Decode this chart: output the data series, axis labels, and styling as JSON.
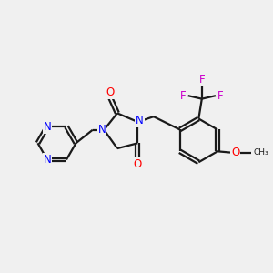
{
  "bg_color": "#f0f0f0",
  "bond_color": "#1a1a1a",
  "N_color": "#0000ff",
  "O_color": "#ff0000",
  "F_color": "#cc00cc",
  "line_width": 1.6,
  "font_size": 8.5,
  "fig_w": 3.0,
  "fig_h": 3.0,
  "dpi": 100,
  "xlim": [
    0,
    10
  ],
  "ylim": [
    0,
    10
  ]
}
